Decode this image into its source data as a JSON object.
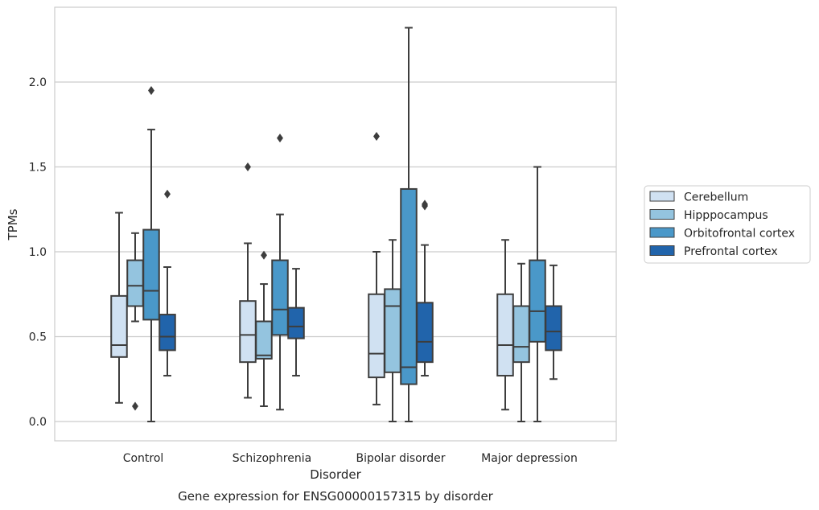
{
  "chart_data": {
    "type": "boxplot",
    "title": "",
    "caption": "Gene expression for ENSG00000157315 by disorder",
    "xlabel": "Disorder",
    "ylabel": "TPMs",
    "ylim": [
      -0.11,
      2.45
    ],
    "yticks": [
      0.0,
      0.5,
      1.0,
      1.5,
      2.0
    ],
    "ytick_labels": [
      "0.0",
      "0.5",
      "1.0",
      "1.5",
      "2.0"
    ],
    "grid": "horizontal",
    "legend_position": "right",
    "categories": [
      "Control",
      "Schizophrenia",
      "Bipolar disorder",
      "Major depression"
    ],
    "series": [
      {
        "name": "Cerebellum",
        "color": "#d0e1f2",
        "boxes": [
          {
            "q1": 0.38,
            "median": 0.45,
            "q3": 0.74,
            "whisker_low": 0.11,
            "whisker_high": 1.23,
            "outliers": []
          },
          {
            "q1": 0.35,
            "median": 0.51,
            "q3": 0.71,
            "whisker_low": 0.14,
            "whisker_high": 1.05,
            "outliers": [
              1.5
            ]
          },
          {
            "q1": 0.26,
            "median": 0.4,
            "q3": 0.75,
            "whisker_low": 0.1,
            "whisker_high": 1.0,
            "outliers": [
              1.68
            ]
          },
          {
            "q1": 0.27,
            "median": 0.45,
            "q3": 0.75,
            "whisker_low": 0.07,
            "whisker_high": 1.07,
            "outliers": []
          }
        ]
      },
      {
        "name": "Hipppocampus",
        "color": "#94c4df",
        "boxes": [
          {
            "q1": 0.68,
            "median": 0.8,
            "q3": 0.95,
            "whisker_low": 0.59,
            "whisker_high": 1.11,
            "outliers": [
              0.09
            ]
          },
          {
            "q1": 0.37,
            "median": 0.39,
            "q3": 0.59,
            "whisker_low": 0.09,
            "whisker_high": 0.81,
            "outliers": [
              0.98
            ]
          },
          {
            "q1": 0.29,
            "median": 0.68,
            "q3": 0.78,
            "whisker_low": 0.0,
            "whisker_high": 1.07,
            "outliers": []
          },
          {
            "q1": 0.35,
            "median": 0.44,
            "q3": 0.68,
            "whisker_low": 0.0,
            "whisker_high": 0.93,
            "outliers": []
          }
        ]
      },
      {
        "name": "Orbitofrontal cortex",
        "color": "#4a98c9",
        "boxes": [
          {
            "q1": 0.6,
            "median": 0.77,
            "q3": 1.13,
            "whisker_low": 0.0,
            "whisker_high": 1.72,
            "outliers": [
              1.95
            ]
          },
          {
            "q1": 0.51,
            "median": 0.66,
            "q3": 0.95,
            "whisker_low": 0.07,
            "whisker_high": 1.22,
            "outliers": [
              1.67
            ]
          },
          {
            "q1": 0.22,
            "median": 0.32,
            "q3": 1.37,
            "whisker_low": 0.0,
            "whisker_high": 2.32,
            "outliers": []
          },
          {
            "q1": 0.47,
            "median": 0.65,
            "q3": 0.95,
            "whisker_low": 0.0,
            "whisker_high": 1.5,
            "outliers": []
          }
        ]
      },
      {
        "name": "Prefrontal cortex",
        "color": "#2164ab",
        "boxes": [
          {
            "q1": 0.42,
            "median": 0.5,
            "q3": 0.63,
            "whisker_low": 0.27,
            "whisker_high": 0.91,
            "outliers": [
              1.34
            ]
          },
          {
            "q1": 0.49,
            "median": 0.56,
            "q3": 0.67,
            "whisker_low": 0.27,
            "whisker_high": 0.9,
            "outliers": []
          },
          {
            "q1": 0.35,
            "median": 0.47,
            "q3": 0.7,
            "whisker_low": 0.27,
            "whisker_high": 1.04,
            "outliers": [
              1.27,
              1.28
            ]
          },
          {
            "q1": 0.42,
            "median": 0.53,
            "q3": 0.68,
            "whisker_low": 0.25,
            "whisker_high": 0.92,
            "outliers": []
          }
        ]
      }
    ]
  }
}
